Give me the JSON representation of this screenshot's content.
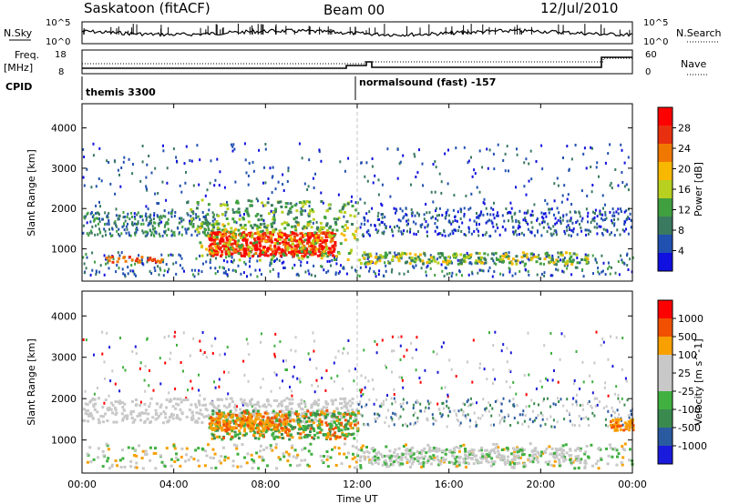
{
  "header": {
    "station": "Saskatoon (fitACF)",
    "beam": "Beam 00",
    "date": "12/Jul/2010"
  },
  "colors": {
    "power_scale": [
      "#1010e0",
      "#2050b0",
      "#3a7a60",
      "#40a040",
      "#b8d020",
      "#f8b800",
      "#f07800",
      "#e83010",
      "#ff0000"
    ],
    "velocity_scale": [
      "#1a1adc",
      "#2a5aa0",
      "#3a8a50",
      "#40b040",
      "#c8c8c8",
      "#c8c8c8",
      "#f8a000",
      "#f05000",
      "#ff0000"
    ]
  },
  "top_panels": {
    "nsky_label": "N.Sky",
    "nsearch_label": "N.Search",
    "freq_label": "Freq.",
    "freq_unit": "[MHz]",
    "nave_label": "Nave",
    "cpid_label": "CPID",
    "nsky_ticks": [
      "10^5",
      "10^0"
    ],
    "nsearch_ticks": [
      "10^5",
      "10^0"
    ],
    "freq_ticks": [
      "18",
      "8"
    ],
    "nave_ticks": [
      "60",
      "0"
    ],
    "cpid_segments": [
      {
        "label": "themis 3300",
        "start_hour": 0
      },
      {
        "label": "normalsound (fast) -157",
        "start_hour": 12
      }
    ]
  },
  "chart_data": [
    {
      "type": "heatmap",
      "name": "power",
      "ylabel": "Slant Range [km]",
      "y_ticks": [
        1000,
        2000,
        3000,
        4000
      ],
      "ylim": [
        200,
        4600
      ],
      "colorbar_label": "Power [dB]",
      "colorbar_ticks": [
        "28",
        "24",
        "20",
        "16",
        "12",
        "8",
        "4"
      ],
      "colorbar_range": [
        0,
        32
      ],
      "x_tick_labels": [
        "00:00",
        "04:00",
        "08:00",
        "12:00",
        "16:00",
        "20:00",
        "00:00"
      ],
      "xlim_hours": [
        0,
        24
      ]
    },
    {
      "type": "heatmap",
      "name": "velocity",
      "ylabel": "Slant Range [km]",
      "y_ticks": [
        1000,
        2000,
        3000,
        4000
      ],
      "ylim": [
        200,
        4600
      ],
      "colorbar_label": "Velocity [m s^-1]",
      "colorbar_ticks": [
        "1000",
        "500",
        "100",
        "25",
        "-25",
        "-100",
        "-500",
        "-1000"
      ],
      "x_tick_labels": [
        "00:00",
        "04:00",
        "08:00",
        "12:00",
        "16:00",
        "20:00",
        "00:00"
      ],
      "xlabel": "Time UT",
      "xlim_hours": [
        0,
        24
      ]
    }
  ]
}
